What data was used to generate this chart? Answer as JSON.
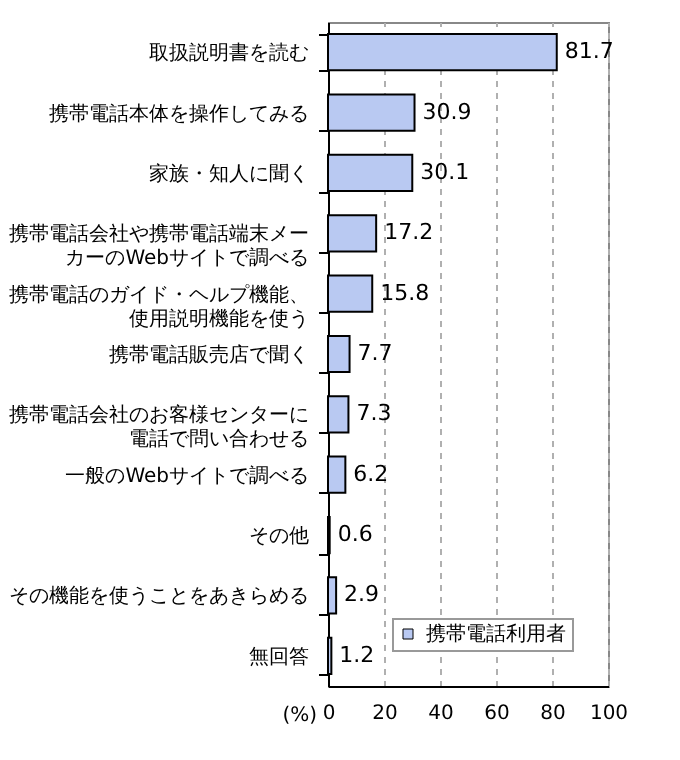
{
  "chart_data": {
    "type": "bar",
    "orientation": "horizontal",
    "categories": [
      "取扱説明書を読む",
      "携帯電話本体を操作してみる",
      "家族・知人に聞く",
      "携帯電話会社や携帯電話端末メーカーのWebサイトで調べる",
      "携帯電話のガイド・ヘルプ機能、使用説明機能を使う",
      "携帯電話販売店で聞く",
      "携帯電話会社のお客様センターに電話で問い合わせる",
      "一般のWebサイトで調べる",
      "その他",
      "その機能を使うことをあきらめる",
      "無回答"
    ],
    "series": [
      {
        "name": "携帯電話利用者",
        "color": "#b9c9f2",
        "values": [
          81.7,
          30.9,
          30.1,
          17.2,
          15.8,
          7.7,
          7.3,
          6.2,
          0.6,
          2.9,
          1.2
        ]
      }
    ],
    "xlabel": "(%)",
    "xlim": [
      0,
      100
    ],
    "xticks": [
      0,
      20,
      40,
      60,
      80,
      100
    ],
    "grid": "x",
    "legend": "bottom right",
    "data_labels": true
  }
}
